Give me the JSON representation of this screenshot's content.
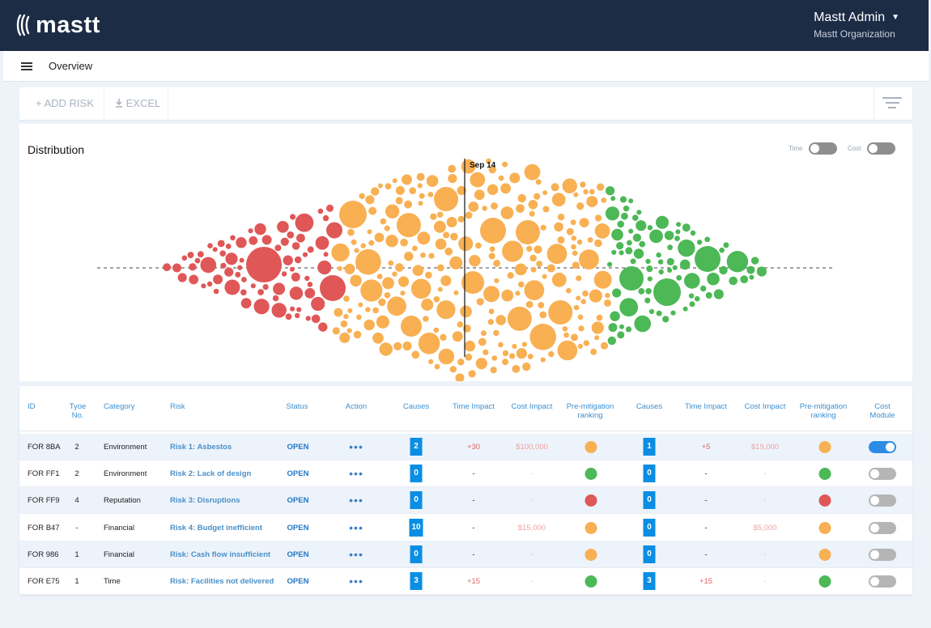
{
  "app": {
    "logo_text": "mastt",
    "user_name": "Mastt Admin",
    "org_name": "Mastt Organization"
  },
  "subbar": {
    "title": "Overview",
    "menu_icon": "hamburger-icon"
  },
  "toolbar": {
    "add_risk": "+ ADD RISK",
    "excel": "EXCEL",
    "excel_icon": "download-icon",
    "filter_icon": "filter-icon"
  },
  "distribution": {
    "title": "Distribution",
    "marker_label": "Sep 14",
    "time_label": "Time",
    "cost_label": "Cost",
    "time_toggle_on": false,
    "cost_toggle_on": false,
    "colors": {
      "red": "#e05757",
      "orange": "#f8b053",
      "green": "#4cb856"
    }
  },
  "table": {
    "headers": {
      "id": "ID",
      "type_no": "Tyoe No.",
      "category": "Category",
      "risk": "Risk",
      "status": "Status",
      "action": "Action",
      "causes": "Causes",
      "time_impact": "Time Impact",
      "cost_impact": "Cost Impact",
      "pre_mitigation": "Pre-mitigation ranking",
      "causes2": "Causes",
      "time_impact2": "Time Impact",
      "cost_impact2": "Cost Impact",
      "pre_mitigation2": "Pre-mitigation ranking",
      "cost_module": "Cost Module"
    },
    "rows": [
      {
        "id": "FOR 8BA",
        "type_no": "2",
        "category": "Environment",
        "risk": "Risk 1: Asbestos",
        "status": "OPEN",
        "action": "•••",
        "causes": "2",
        "time_impact": "+30",
        "cost_impact": "$100,000",
        "ranking": "orange",
        "causes2": "1",
        "time_impact2": "+5",
        "cost_impact2": "$19,000",
        "ranking2": "orange",
        "cost_module": true
      },
      {
        "id": "FOR FF1",
        "type_no": "2",
        "category": "Environment",
        "risk": "Risk 2: Lack of design",
        "status": "OPEN",
        "action": "•••",
        "causes": "0",
        "time_impact": "-",
        "cost_impact": "-",
        "ranking": "green",
        "causes2": "0",
        "time_impact2": "-",
        "cost_impact2": "-",
        "ranking2": "green",
        "cost_module": false
      },
      {
        "id": "FOR FF9",
        "type_no": "4",
        "category": "Reputation",
        "risk": "Risk 3: Disruptions",
        "status": "OPEN",
        "action": "•••",
        "causes": "0",
        "time_impact": "-",
        "cost_impact": "-",
        "ranking": "red",
        "causes2": "0",
        "time_impact2": "-",
        "cost_impact2": "-",
        "ranking2": "red",
        "cost_module": false
      },
      {
        "id": "FOR B47",
        "type_no": "-",
        "category": "Financial",
        "risk": "Risk 4: Budget inefficient",
        "status": "OPEN",
        "action": "•••",
        "causes": "10",
        "time_impact": "-",
        "cost_impact": "$15,000",
        "ranking": "orange",
        "causes2": "0",
        "time_impact2": "-",
        "cost_impact2": "$5,000",
        "ranking2": "orange",
        "cost_module": false
      },
      {
        "id": "FOR 986",
        "type_no": "1",
        "category": "Financial",
        "risk": "Risk: Cash flow insufficient",
        "status": "OPEN",
        "action": "•••",
        "causes": "0",
        "time_impact": "-",
        "cost_impact": "-",
        "ranking": "orange",
        "causes2": "0",
        "time_impact2": "-",
        "cost_impact2": "-",
        "ranking2": "orange",
        "cost_module": false
      },
      {
        "id": "FOR E75",
        "type_no": "1",
        "category": "Time",
        "risk": "Risk: Facilities not delivered",
        "status": "OPEN",
        "action": "•••",
        "causes": "3",
        "time_impact": "+15",
        "cost_impact": "-",
        "ranking": "green",
        "causes2": "3",
        "time_impact2": "+15",
        "cost_impact2": "-",
        "ranking2": "green",
        "cost_module": false
      }
    ]
  }
}
